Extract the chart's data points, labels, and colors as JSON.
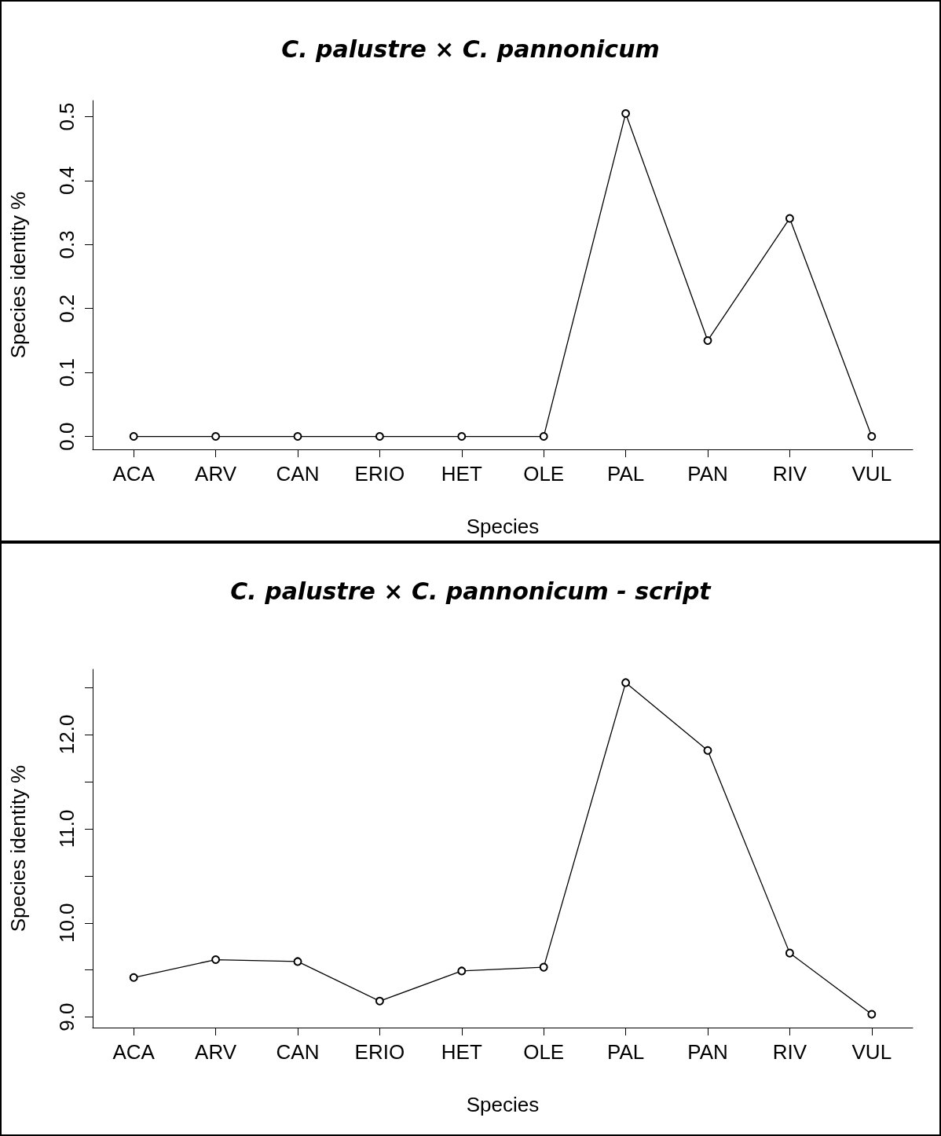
{
  "chart_data": [
    {
      "type": "line",
      "title": "C. palustre × C. pannonicum",
      "xlabel": "Species",
      "ylabel": "Species identity %",
      "categories": [
        "ACA",
        "ARV",
        "CAN",
        "ERIO",
        "HET",
        "OLE",
        "PAL",
        "PAN",
        "RIV",
        "VUL"
      ],
      "series": [
        {
          "color": "#000000",
          "values": [
            0,
            0,
            0,
            0,
            0,
            0,
            0.505,
            0.15,
            0.341,
            0
          ]
        }
      ],
      "ylim": [
        -0.0202,
        0.5252
      ],
      "yticks": [
        {
          "value": 0,
          "label": "0.0"
        },
        0.1,
        0.2,
        0.3,
        0.4,
        0.5
      ],
      "grid": false,
      "marker": "circle",
      "line_style": "solid"
    },
    {
      "type": "line",
      "title": "C. palustre × C. pannonicum - script",
      "xlabel": "Species",
      "ylabel": "Species identity %",
      "categories": [
        "ACA",
        "ARV",
        "CAN",
        "ERIO",
        "HET",
        "OLE",
        "PAL",
        "PAN",
        "RIV",
        "VUL"
      ],
      "series": [
        {
          "color": "#000000",
          "values": [
            9.42,
            9.61,
            9.59,
            9.17,
            9.49,
            9.53,
            12.55,
            11.83,
            9.68,
            9.03
          ]
        }
      ],
      "ylim": [
        8.889,
        12.691
      ],
      "yticks": [
        {
          "value": 9,
          "label": "9.0"
        },
        {
          "value": 9.5,
          "label": null
        },
        {
          "value": 10,
          "label": "10.0"
        },
        {
          "value": 10.5,
          "label": null
        },
        {
          "value": 11,
          "label": "11.0"
        },
        {
          "value": 11.5,
          "label": null
        },
        {
          "value": 12,
          "label": "12.0"
        },
        {
          "value": 12.5,
          "label": null
        }
      ],
      "grid": false,
      "marker": "circle",
      "line_style": "solid"
    }
  ]
}
